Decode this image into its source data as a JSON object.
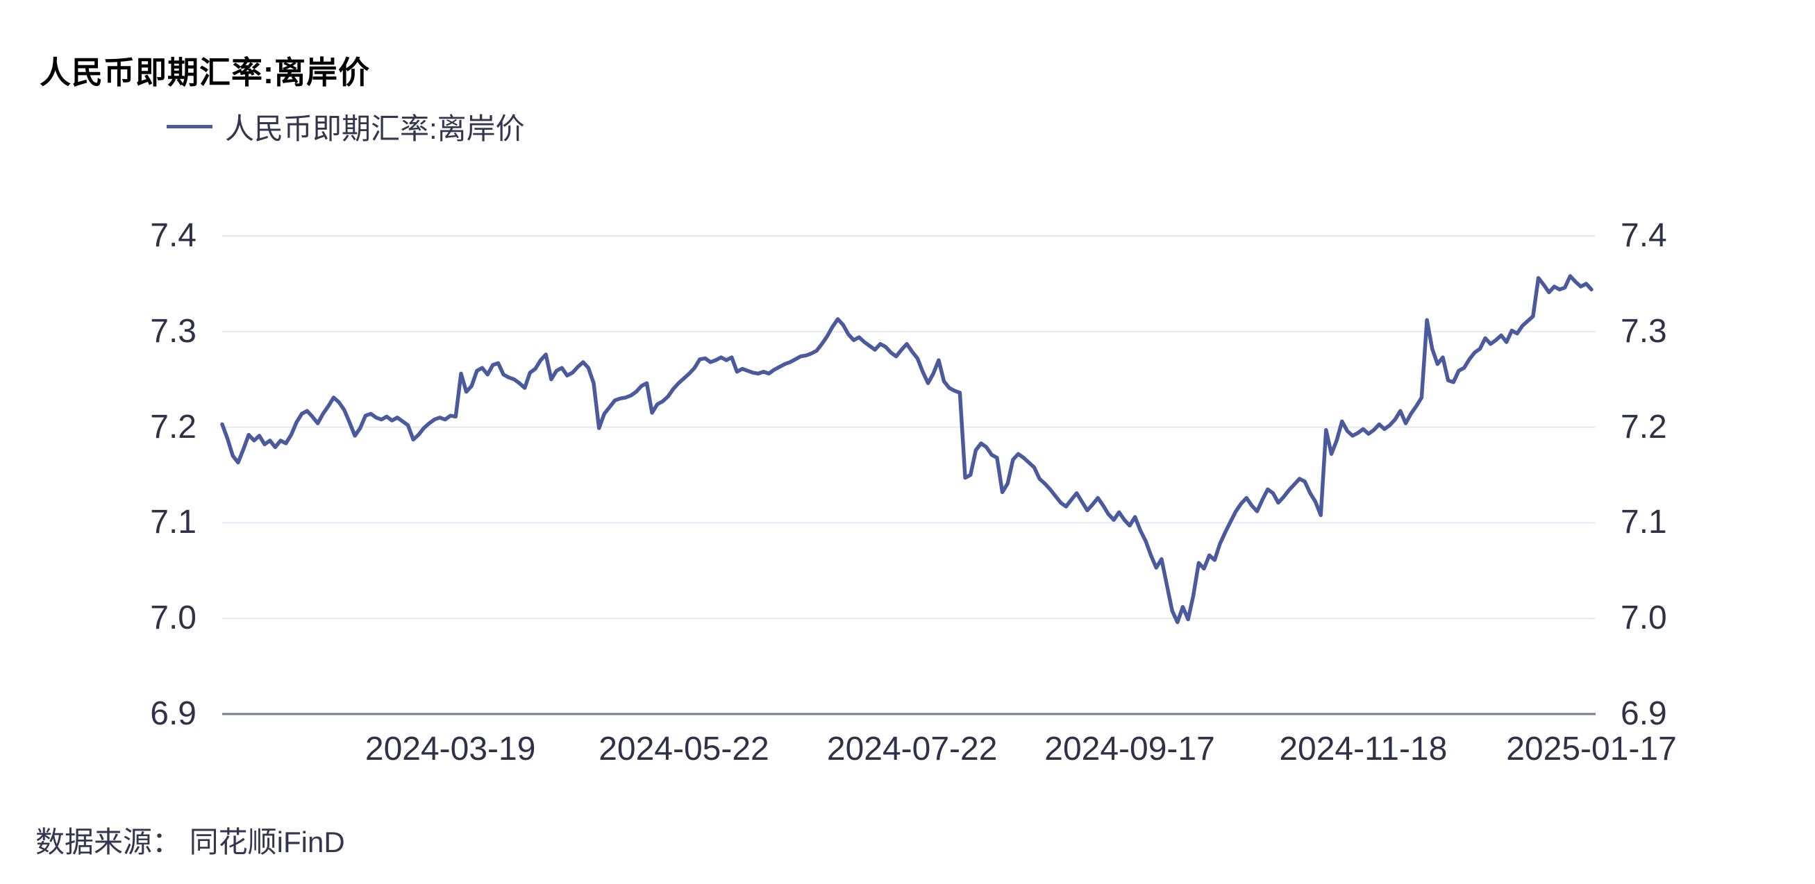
{
  "title": "人民币即期汇率:离岸价",
  "legend": {
    "label": "人民币即期汇率:离岸价"
  },
  "source": {
    "label": "数据来源： 同花顺iFinD"
  },
  "colors": {
    "line": "#4b5a9c",
    "grid": "#e6e8f2",
    "axis": "#727b9c",
    "tick_text": "#2e3148",
    "title_text": "#000000",
    "label_text": "#33364e"
  },
  "chart_data": {
    "type": "line",
    "title": "人民币即期汇率:离岸价",
    "legend_entries": [
      "人民币即期汇率:离岸价"
    ],
    "legend_position": "top-left",
    "grid": "horizontal",
    "ylim": [
      6.9,
      7.4
    ],
    "y_ticks": [
      7.4,
      7.3,
      7.2,
      7.1,
      7.0,
      6.9
    ],
    "y_tick_labels": [
      "7.4",
      "7.3",
      "7.2",
      "7.1",
      "7.0",
      "6.9"
    ],
    "y_axis_sides": "both",
    "x_tick_labels": [
      "2024-03-19",
      "2024-05-22",
      "2024-07-22",
      "2024-09-17",
      "2024-11-18",
      "2025-01-17"
    ],
    "x_tick_indices": [
      43,
      87,
      130,
      171,
      215,
      258
    ],
    "series": [
      {
        "name": "人民币即期汇率:离岸价",
        "values": [
          7.203,
          7.188,
          7.17,
          7.163,
          7.177,
          7.192,
          7.186,
          7.191,
          7.182,
          7.186,
          7.179,
          7.186,
          7.183,
          7.192,
          7.205,
          7.214,
          7.217,
          7.211,
          7.204,
          7.214,
          7.222,
          7.231,
          7.226,
          7.218,
          7.205,
          7.191,
          7.199,
          7.212,
          7.214,
          7.21,
          7.208,
          7.211,
          7.207,
          7.21,
          7.206,
          7.202,
          7.187,
          7.192,
          7.199,
          7.204,
          7.208,
          7.21,
          7.208,
          7.212,
          7.211,
          7.256,
          7.237,
          7.243,
          7.259,
          7.262,
          7.255,
          7.265,
          7.267,
          7.255,
          7.252,
          7.25,
          7.246,
          7.241,
          7.257,
          7.261,
          7.27,
          7.276,
          7.25,
          7.259,
          7.262,
          7.254,
          7.257,
          7.263,
          7.268,
          7.262,
          7.246,
          7.199,
          7.214,
          7.221,
          7.228,
          7.23,
          7.231,
          7.233,
          7.237,
          7.243,
          7.246,
          7.215,
          7.224,
          7.227,
          7.232,
          7.24,
          7.246,
          7.251,
          7.256,
          7.262,
          7.271,
          7.272,
          7.268,
          7.27,
          7.273,
          7.27,
          7.273,
          7.258,
          7.261,
          7.259,
          7.257,
          7.256,
          7.258,
          7.256,
          7.26,
          7.263,
          7.266,
          7.268,
          7.271,
          7.274,
          7.275,
          7.277,
          7.28,
          7.287,
          7.295,
          7.305,
          7.313,
          7.307,
          7.297,
          7.291,
          7.294,
          7.289,
          7.285,
          7.281,
          7.287,
          7.284,
          7.278,
          7.274,
          7.281,
          7.287,
          7.279,
          7.272,
          7.258,
          7.246,
          7.256,
          7.27,
          7.248,
          7.241,
          7.238,
          7.236,
          7.147,
          7.15,
          7.176,
          7.183,
          7.179,
          7.171,
          7.168,
          7.132,
          7.141,
          7.166,
          7.172,
          7.168,
          7.163,
          7.158,
          7.146,
          7.141,
          7.135,
          7.128,
          7.121,
          7.117,
          7.124,
          7.131,
          7.122,
          7.113,
          7.119,
          7.126,
          7.118,
          7.109,
          7.103,
          7.111,
          7.103,
          7.097,
          7.106,
          7.092,
          7.081,
          7.066,
          7.053,
          7.062,
          7.035,
          7.008,
          6.996,
          7.012,
          6.999,
          7.024,
          7.058,
          7.052,
          7.066,
          7.061,
          7.078,
          7.09,
          7.101,
          7.112,
          7.12,
          7.126,
          7.118,
          7.112,
          7.124,
          7.135,
          7.131,
          7.121,
          7.127,
          7.134,
          7.14,
          7.146,
          7.143,
          7.131,
          7.122,
          7.108,
          7.197,
          7.172,
          7.186,
          7.206,
          7.196,
          7.191,
          7.194,
          7.198,
          7.193,
          7.197,
          7.203,
          7.198,
          7.202,
          7.208,
          7.217,
          7.204,
          7.214,
          7.222,
          7.231,
          7.312,
          7.282,
          7.266,
          7.273,
          7.249,
          7.247,
          7.259,
          7.262,
          7.271,
          7.278,
          7.282,
          7.293,
          7.287,
          7.291,
          7.296,
          7.289,
          7.301,
          7.298,
          7.306,
          7.311,
          7.316,
          7.356,
          7.349,
          7.341,
          7.347,
          7.344,
          7.346,
          7.358,
          7.352,
          7.347,
          7.35,
          7.344
        ]
      }
    ]
  }
}
